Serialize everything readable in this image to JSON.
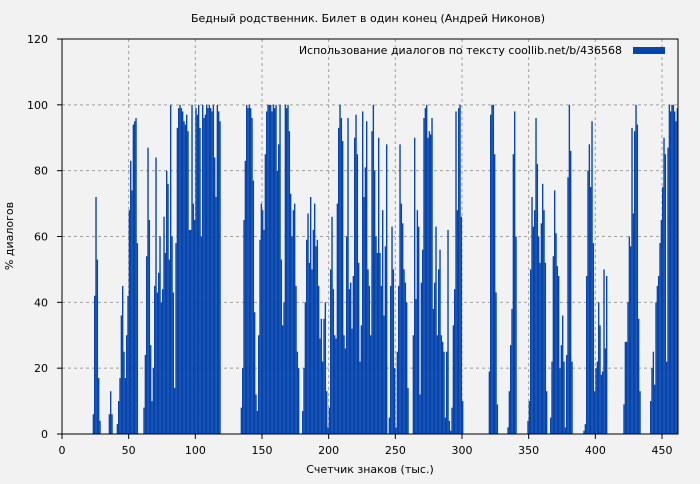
{
  "chart_data": {
    "type": "bar",
    "title": "Бедный родственник. Билет в один конец (Андрей Никонов)",
    "xlabel": "Счетчик знаков (тыс.)",
    "ylabel": "% диалогов",
    "xlim": [
      0,
      462
    ],
    "ylim": [
      0,
      120
    ],
    "xticks": [
      0,
      50,
      100,
      150,
      200,
      250,
      300,
      350,
      400,
      450
    ],
    "yticks": [
      0,
      20,
      40,
      60,
      80,
      100,
      120
    ],
    "grid": true,
    "legend": {
      "label": "Использование диалогов по тексту  coollib.net/b/436568",
      "placement": "top-right"
    },
    "bar_color": "#0645ad",
    "series": [
      {
        "name": "Использование диалогов по тексту  coollib.net/b/436568",
        "segments": [
          {
            "start": 23,
            "values": [
              6,
              42,
              72,
              53,
              17,
              4
            ]
          },
          {
            "start": 35,
            "values": [
              6,
              13,
              6
            ]
          },
          {
            "start": 41,
            "values": [
              3,
              10,
              17,
              36,
              45,
              25,
              17,
              30,
              42,
              68,
              83,
              74,
              94,
              95,
              96,
              58
            ]
          },
          {
            "start": 61,
            "values": [
              8,
              24,
              54,
              87,
              65,
              27,
              10,
              20,
              45,
              84,
              43,
              49,
              60,
              40,
              44,
              66,
              55,
              80,
              76,
              53,
              100,
              60,
              43,
              14,
              58,
              93,
              99,
              100,
              99,
              98,
              95,
              94,
              97,
              92,
              62,
              62,
              100,
              70,
              65,
              99,
              97,
              100,
              93,
              60,
              100,
              96,
              97,
              100,
              99,
              100,
              99,
              98,
              100,
              84,
              72,
              100,
              98,
              95
            ]
          },
          {
            "start": 134,
            "values": [
              8,
              20,
              65,
              83,
              100,
              99,
              100,
              99,
              96,
              77,
              37,
              12,
              7,
              30,
              59,
              70,
              68,
              62,
              85,
              98,
              100,
              100,
              100,
              98,
              100,
              99,
              100,
              80,
              88,
              100,
              53,
              33,
              40,
              100,
              99,
              100,
              92,
              73,
              60,
              68,
              70,
              45,
              25,
              20
            ]
          },
          {
            "start": 180,
            "values": [
              7,
              20,
              40,
              59,
              67,
              52,
              72,
              50,
              62,
              70,
              57,
              59,
              45,
              29,
              35,
              22,
              35,
              40,
              13,
              2,
              8,
              50,
              66,
              44,
              30,
              29,
              70,
              93,
              100,
              96,
              89,
              30,
              26,
              60,
              96,
              44,
              46,
              32,
              48,
              90,
              97,
              85,
              52,
              22,
              33,
              98,
              72,
              81,
              95,
              50,
              45,
              30,
              92,
              100,
              80,
              60,
              55,
              90,
              55,
              45,
              68,
              36,
              57,
              88
            ]
          },
          {
            "start": 245,
            "values": [
              5,
              45,
              63,
              50,
              20,
              2,
              25,
              45,
              88,
              70,
              64,
              50,
              46,
              40,
              14
            ]
          },
          {
            "start": 263,
            "values": [
              30,
              90,
              41,
              68,
              63,
              12,
              46,
              56,
              96,
              99,
              100,
              90,
              92,
              91,
              96,
              38,
              46,
              63,
              30,
              50,
              56,
              30,
              28,
              25,
              5,
              25,
              62,
              4,
              1,
              8,
              33,
              44,
              98,
              68,
              99,
              100,
              66,
              10
            ]
          },
          {
            "start": 320,
            "values": [
              19,
              97,
              100,
              100,
              85,
              43,
              9
            ]
          },
          {
            "start": 334,
            "values": [
              2,
              13,
              27,
              38,
              85,
              98,
              60
            ]
          },
          {
            "start": 349,
            "values": [
              4,
              10,
              50,
              72,
              63,
              68,
              96,
              82,
              60,
              52,
              64,
              76,
              68,
              52,
              13
            ]
          },
          {
            "start": 366,
            "values": [
              5,
              22,
              54,
              74,
              61,
              51,
              48,
              20,
              27,
              36,
              22,
              2,
              24,
              78,
              100,
              86,
              22
            ]
          },
          {
            "start": 391,
            "values": [
              1,
              3,
              48,
              80,
              88,
              75,
              95,
              58,
              13,
              20,
              22,
              40,
              33,
              18,
              19,
              50,
              26,
              48
            ]
          },
          {
            "start": 421,
            "values": [
              9,
              28,
              28,
              40,
              60,
              57,
              93,
              67,
              92,
              100,
              94,
              35,
              13
            ]
          },
          {
            "start": 441,
            "values": [
              10,
              20,
              25,
              15,
              40,
              45,
              48,
              58,
              65,
              75,
              90,
              85,
              22,
              87,
              100,
              98,
              100,
              100,
              98,
              95,
              99
            ]
          }
        ]
      }
    ]
  }
}
